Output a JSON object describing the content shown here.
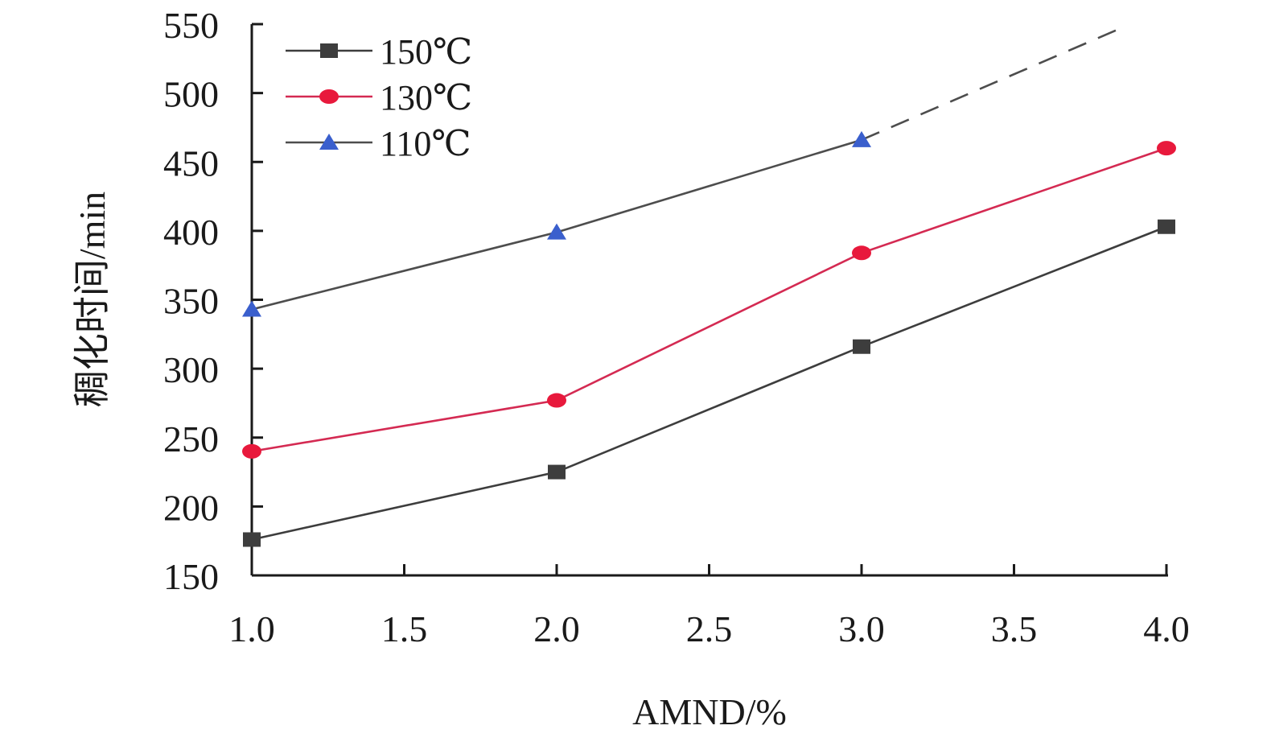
{
  "chart_data": {
    "type": "line",
    "title": "",
    "xlabel": "AMND/%",
    "ylabel": "稠化时间/min",
    "xlim": [
      1.0,
      4.0
    ],
    "ylim": [
      150,
      550
    ],
    "x_ticks": [
      "1.0",
      "1.5",
      "2.0",
      "2.5",
      "3.0",
      "3.5",
      "4.0"
    ],
    "y_ticks": [
      "150",
      "200",
      "250",
      "300",
      "350",
      "400",
      "450",
      "500",
      "550"
    ],
    "grid": false,
    "legend_position": "top-left",
    "series": [
      {
        "name": "150℃",
        "marker": "square",
        "color": "#3d3d3d",
        "x": [
          1.0,
          2.0,
          3.0,
          4.0
        ],
        "y": [
          176,
          225,
          316,
          403
        ]
      },
      {
        "name": "130℃",
        "marker": "circle",
        "color": "#e8193c",
        "line_color": "#d42a52",
        "x": [
          1.0,
          2.0,
          3.0,
          4.0
        ],
        "y": [
          240,
          277,
          384,
          460
        ]
      },
      {
        "name": "110℃",
        "marker": "triangle",
        "color": "#3a5fcd",
        "line_color": "#4d4d4d",
        "x": [
          1.0,
          2.0,
          3.0
        ],
        "y": [
          343,
          399,
          466
        ],
        "extrapolation": {
          "style": "dashed",
          "x": [
            3.0,
            3.85
          ],
          "y": [
            466,
            547
          ]
        }
      }
    ]
  }
}
